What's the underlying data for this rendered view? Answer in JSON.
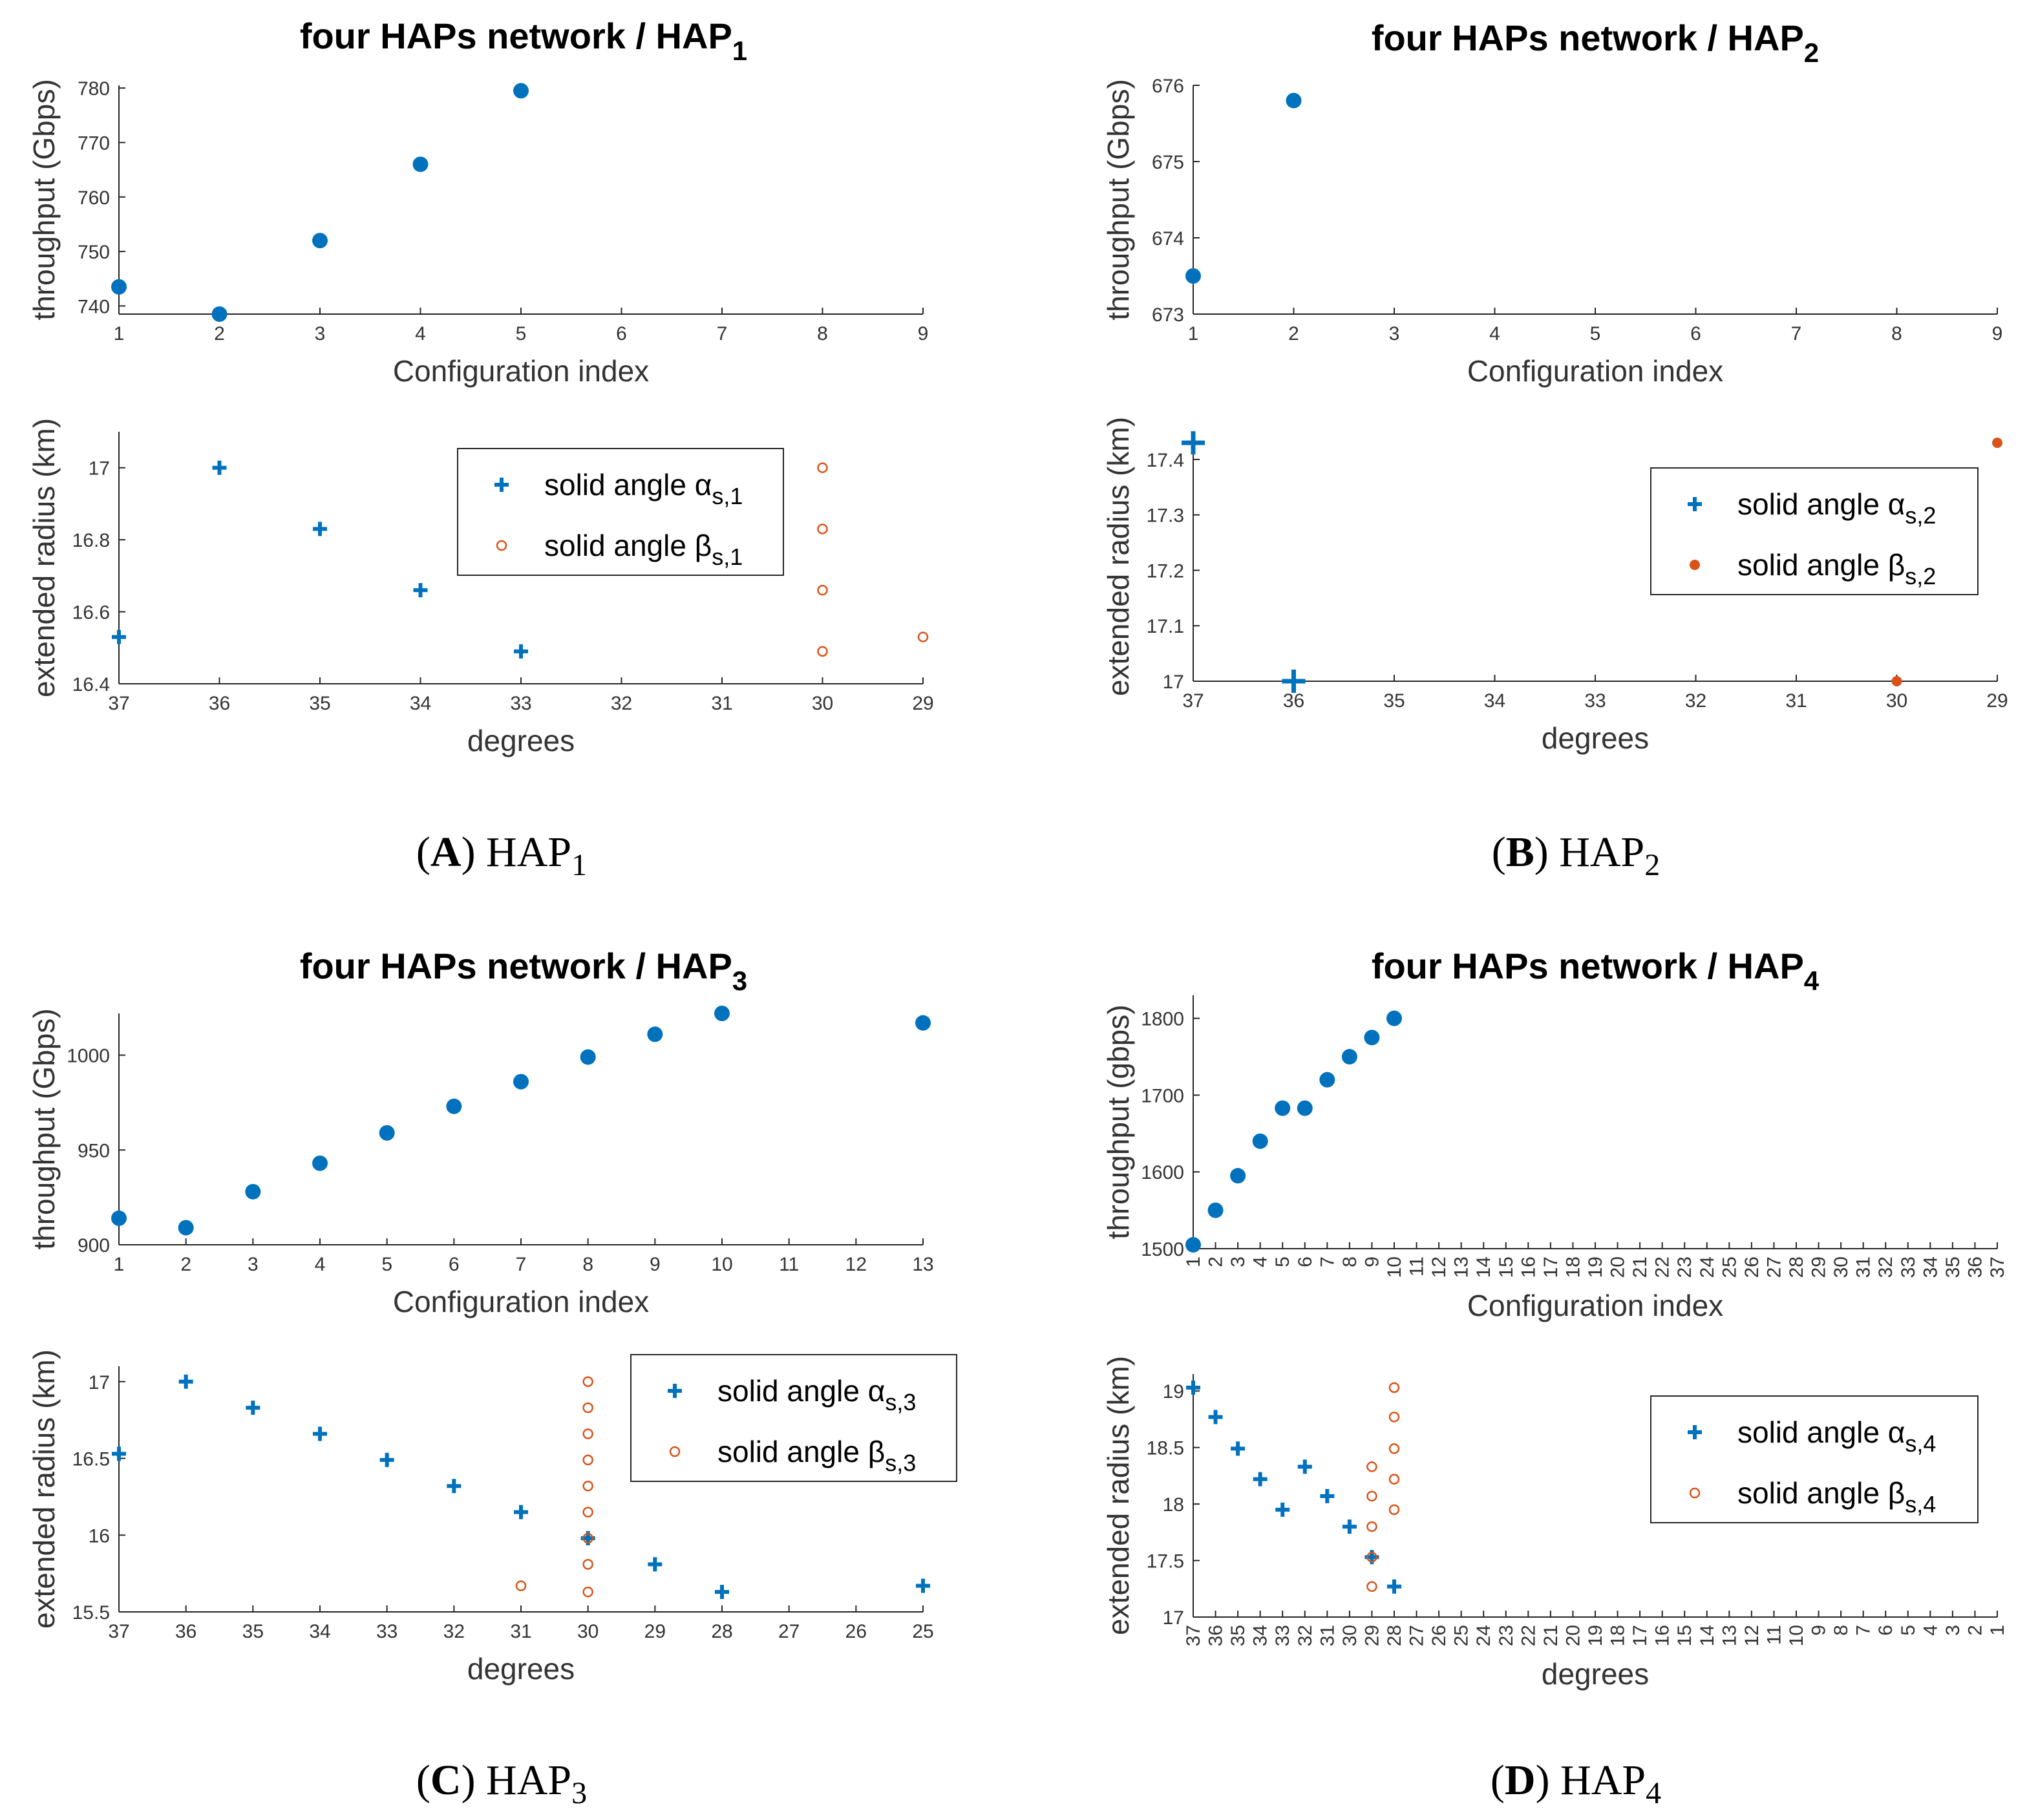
{
  "colors": {
    "alpha": "#0072BD",
    "beta": "#D95319",
    "axis": "#262626"
  },
  "legend_prefix": {
    "alpha": "solid angle α",
    "beta": "solid angle β"
  },
  "panels": [
    {
      "id": "A",
      "caption_letter": "A",
      "caption_text": "HAP",
      "caption_sub": "1"
    },
    {
      "id": "B",
      "caption_letter": "B",
      "caption_text": "HAP",
      "caption_sub": "2"
    },
    {
      "id": "C",
      "caption_letter": "C",
      "caption_text": "HAP",
      "caption_sub": "3"
    },
    {
      "id": "D",
      "caption_letter": "D",
      "caption_text": "HAP",
      "caption_sub": "4"
    }
  ],
  "chart_data": [
    {
      "id": "A-top",
      "type": "scatter",
      "title": "four HAPs network / HAP",
      "title_sub": "1",
      "xlabel": "Configuration index",
      "ylabel": "throughput (Gbps)",
      "xlim": [
        1,
        9
      ],
      "ylim": [
        738.5,
        780.5
      ],
      "xticks": [
        1,
        2,
        3,
        4,
        5,
        6,
        7,
        8,
        9
      ],
      "yticks": [
        740,
        750,
        760,
        770,
        780
      ],
      "series": [
        {
          "name": "throughput",
          "marker": "dot",
          "x": [
            1,
            2,
            3,
            4,
            5
          ],
          "y": [
            743.5,
            738.5,
            752,
            766,
            779.5
          ]
        }
      ]
    },
    {
      "id": "A-bottom",
      "type": "scatter",
      "xlabel": "degrees",
      "ylabel": "extended radius (km)",
      "xlim": [
        37,
        29
      ],
      "ylim": [
        16.4,
        17.1
      ],
      "xticks": [
        37,
        36,
        35,
        34,
        33,
        32,
        31,
        30,
        29
      ],
      "yticks": [
        16.4,
        16.6,
        16.8,
        17
      ],
      "legend_position": "top-right",
      "series": [
        {
          "name": "solid angle α",
          "sub": "s,1",
          "marker": "plus",
          "x": [
            37,
            36,
            35,
            34,
            33
          ],
          "y": [
            16.53,
            17.0,
            16.83,
            16.66,
            16.49
          ]
        },
        {
          "name": "solid angle β",
          "sub": "s,1",
          "marker": "circle",
          "x": [
            30,
            30,
            30,
            30,
            29
          ],
          "y": [
            17.0,
            16.83,
            16.66,
            16.49,
            16.53
          ]
        }
      ]
    },
    {
      "id": "B-top",
      "type": "scatter",
      "title": "four HAPs network / HAP",
      "title_sub": "2",
      "xlabel": "Configuration index",
      "ylabel": "throughput (Gbps)",
      "xlim": [
        1,
        9
      ],
      "ylim": [
        673,
        676
      ],
      "xticks": [
        1,
        2,
        3,
        4,
        5,
        6,
        7,
        8,
        9
      ],
      "yticks": [
        673,
        674,
        675,
        676
      ],
      "series": [
        {
          "name": "throughput",
          "marker": "dot",
          "x": [
            1,
            2
          ],
          "y": [
            673.5,
            675.8
          ]
        }
      ]
    },
    {
      "id": "B-bottom",
      "type": "scatter",
      "xlabel": "degrees",
      "ylabel": "extended radius (km)",
      "xlim": [
        37,
        29
      ],
      "ylim": [
        17,
        17.45
      ],
      "xticks": [
        37,
        36,
        35,
        34,
        33,
        32,
        31,
        30,
        29
      ],
      "yticks": [
        17,
        17.1,
        17.2,
        17.3,
        17.4
      ],
      "legend_position": "top-right",
      "series": [
        {
          "name": "solid angle α",
          "sub": "s,2",
          "marker": "plus-big",
          "x": [
            37,
            36
          ],
          "y": [
            17.43,
            17.0
          ]
        },
        {
          "name": "solid angle β",
          "sub": "s,2",
          "marker": "filled-small",
          "x": [
            30,
            29
          ],
          "y": [
            17.0,
            17.43
          ]
        }
      ]
    },
    {
      "id": "C-top",
      "type": "scatter",
      "title": "four HAPs network / HAP",
      "title_sub": "3",
      "xlabel": "Configuration index",
      "ylabel": "throughput (Gbps)",
      "xlim": [
        1,
        13
      ],
      "ylim": [
        900,
        1022
      ],
      "xticks": [
        1,
        2,
        3,
        4,
        5,
        6,
        7,
        8,
        9,
        10,
        11,
        12,
        13
      ],
      "yticks": [
        900,
        950,
        1000
      ],
      "series": [
        {
          "name": "throughput",
          "marker": "dot",
          "x": [
            1,
            2,
            3,
            4,
            5,
            6,
            7,
            8,
            9,
            10,
            13
          ],
          "y": [
            914,
            909,
            928,
            943,
            959,
            973,
            986,
            999,
            1011,
            1022,
            1017
          ]
        }
      ]
    },
    {
      "id": "C-bottom",
      "type": "scatter",
      "xlabel": "degrees",
      "ylabel": "extended radius (km)",
      "xlim": [
        37,
        25
      ],
      "ylim": [
        15.5,
        17.1
      ],
      "xticks": [
        37,
        36,
        35,
        34,
        33,
        32,
        31,
        30,
        29,
        28,
        27,
        26,
        25
      ],
      "yticks": [
        15.5,
        16,
        16.5,
        17
      ],
      "legend_position": "top-right",
      "series": [
        {
          "name": "solid angle α",
          "sub": "s,3",
          "marker": "plus",
          "x": [
            37,
            36,
            35,
            34,
            33,
            32,
            31,
            30,
            29,
            28,
            25
          ],
          "y": [
            16.53,
            17.0,
            16.83,
            16.66,
            16.49,
            16.32,
            16.15,
            15.98,
            15.81,
            15.63,
            15.67
          ]
        },
        {
          "name": "solid angle β",
          "sub": "s,3",
          "marker": "circle",
          "x": [
            30,
            30,
            30,
            30,
            30,
            30,
            30,
            30,
            30,
            31
          ],
          "y": [
            17.0,
            16.83,
            16.66,
            16.49,
            16.32,
            16.15,
            15.98,
            15.81,
            15.63,
            15.67
          ]
        }
      ]
    },
    {
      "id": "D-top",
      "type": "scatter",
      "title": "four HAPs network / HAP",
      "title_sub": "4",
      "xlabel": "Configuration index",
      "ylabel": "throughput (gbps)",
      "xlim": [
        1,
        37
      ],
      "ylim": [
        1500,
        1830
      ],
      "xticks": [
        1,
        2,
        3,
        4,
        5,
        6,
        7,
        8,
        9,
        10,
        11,
        12,
        13,
        14,
        15,
        16,
        17,
        18,
        19,
        20,
        21,
        22,
        23,
        24,
        25,
        26,
        27,
        28,
        29,
        30,
        31,
        32,
        33,
        34,
        35,
        36,
        37
      ],
      "xtick_rotate": true,
      "yticks": [
        1500,
        1600,
        1700,
        1800
      ],
      "series": [
        {
          "name": "throughput",
          "marker": "dot",
          "x": [
            1,
            2,
            3,
            4,
            5,
            6,
            7,
            8,
            9,
            10
          ],
          "y": [
            1505,
            1550,
            1595,
            1640,
            1683,
            1683,
            1720,
            1750,
            1775,
            1800
          ]
        }
      ]
    },
    {
      "id": "D-bottom",
      "type": "scatter",
      "xlabel": "degrees",
      "ylabel": "extended radius (km)",
      "xlim": [
        37,
        1
      ],
      "ylim": [
        17,
        19.15
      ],
      "xticks": [
        37,
        36,
        35,
        34,
        33,
        32,
        31,
        30,
        29,
        28,
        27,
        26,
        25,
        24,
        23,
        22,
        21,
        20,
        19,
        18,
        17,
        16,
        15,
        14,
        13,
        12,
        11,
        10,
        9,
        8,
        7,
        6,
        5,
        4,
        3,
        2,
        1
      ],
      "xtick_rotate": true,
      "yticks": [
        17,
        17.5,
        18,
        18.5,
        19
      ],
      "legend_position": "top-right",
      "series": [
        {
          "name": "solid angle α",
          "sub": "s,4",
          "marker": "plus",
          "x": [
            37,
            36,
            35,
            34,
            33,
            32,
            31,
            30,
            29,
            28
          ],
          "y": [
            19.03,
            18.77,
            18.49,
            18.22,
            17.95,
            18.33,
            18.07,
            17.8,
            17.53,
            17.27
          ]
        },
        {
          "name": "solid angle β",
          "sub": "s,4",
          "marker": "circle",
          "x": [
            28,
            28,
            28,
            28,
            28,
            29,
            29,
            29,
            29,
            29
          ],
          "y": [
            19.03,
            18.77,
            18.49,
            18.22,
            17.95,
            18.33,
            18.07,
            17.8,
            17.53,
            17.27
          ]
        }
      ]
    }
  ]
}
